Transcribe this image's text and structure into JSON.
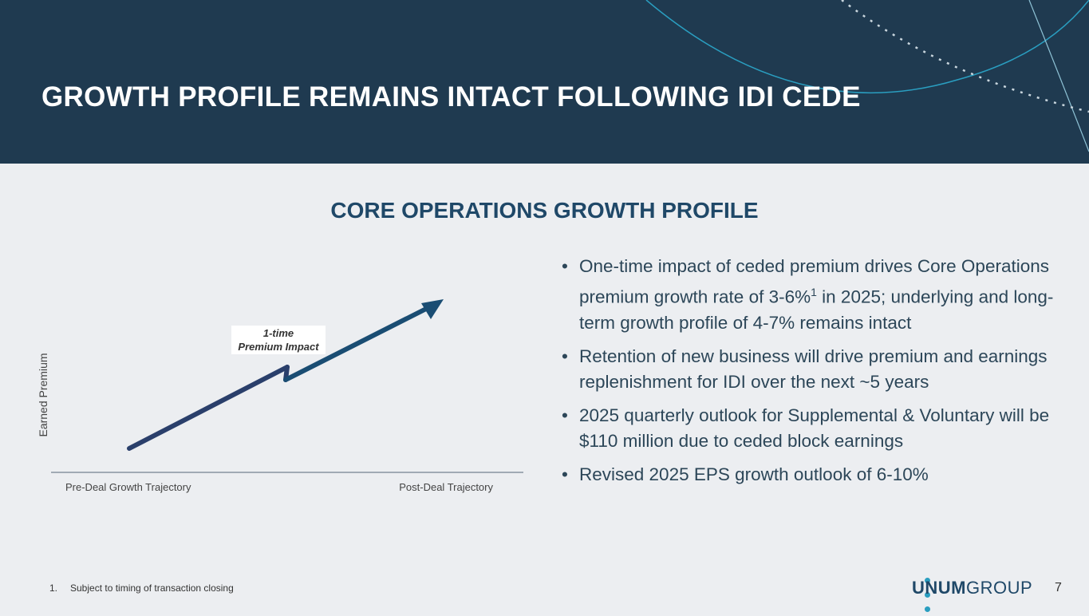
{
  "header": {
    "title": "GROWTH PROFILE REMAINS INTACT FOLLOWING IDI CEDE"
  },
  "section": {
    "subtitle": "CORE OPERATIONS GROWTH PROFILE"
  },
  "chart": {
    "y_label": "Earned Premium",
    "x_left_label": "Pre-Deal Growth Trajectory",
    "x_right_label": "Post-Deal Trajectory",
    "annotation_line1": "1-time",
    "annotation_line2": "Premium Impact"
  },
  "bullets": [
    {
      "pre": "One-time impact of ceded premium drives Core Operations premium growth rate of 3-6%",
      "sup": "1",
      "post": " in 2025; underlying and long-term growth profile of 4-7% remains intact"
    },
    {
      "pre": "Retention of new business will drive premium and earnings replenishment for IDI over the next ~5 years",
      "sup": "",
      "post": ""
    },
    {
      "pre": "2025 quarterly outlook for Supplemental & Voluntary will be $110 million due to ceded block earnings",
      "sup": "",
      "post": ""
    },
    {
      "pre": "Revised 2025 EPS growth outlook of 6-10%",
      "sup": "",
      "post": ""
    }
  ],
  "footnote": {
    "number": "1.",
    "text": "Subject to timing of transaction closing"
  },
  "logo": {
    "brand": "UNUM",
    "suffix": "GROUP"
  },
  "page_number": "7",
  "colors": {
    "header_bg": "#1f3a50",
    "line_pre": "#2a3f6b",
    "line_post": "#1a4d73",
    "accent": "#2a9ec0"
  }
}
